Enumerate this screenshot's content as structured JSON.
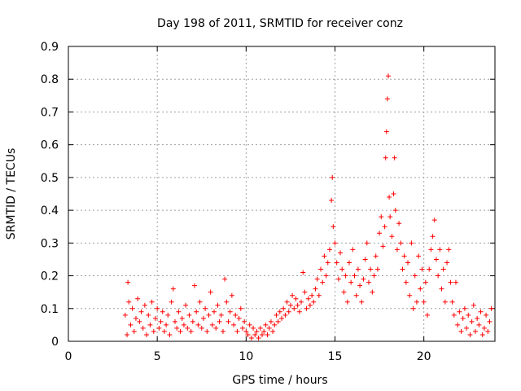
{
  "chart_data": {
    "type": "scatter",
    "title": "Day 198 of 2011, SRMTID for receiver conz",
    "xlabel": "GPS time / hours",
    "ylabel": "SRMTID / TECUs",
    "xlim": [
      0,
      24
    ],
    "ylim": [
      0,
      0.9
    ],
    "xticks": [
      0,
      5,
      10,
      15,
      20
    ],
    "yticks": [
      0,
      0.1,
      0.2,
      0.3,
      0.4,
      0.5,
      0.6,
      0.7,
      0.8,
      0.9
    ],
    "grid": true,
    "marker": "plus",
    "color": "#ff0000",
    "series": [
      {
        "name": "conz",
        "points": [
          [
            3.2,
            0.08
          ],
          [
            3.3,
            0.02
          ],
          [
            3.35,
            0.18
          ],
          [
            3.4,
            0.12
          ],
          [
            3.5,
            0.05
          ],
          [
            3.6,
            0.1
          ],
          [
            3.7,
            0.03
          ],
          [
            3.8,
            0.07
          ],
          [
            3.9,
            0.13
          ],
          [
            4.0,
            0.06
          ],
          [
            4.1,
            0.09
          ],
          [
            4.2,
            0.04
          ],
          [
            4.3,
            0.11
          ],
          [
            4.4,
            0.02
          ],
          [
            4.5,
            0.08
          ],
          [
            4.6,
            0.05
          ],
          [
            4.7,
            0.12
          ],
          [
            4.8,
            0.03
          ],
          [
            4.9,
            0.07
          ],
          [
            5.0,
            0.1
          ],
          [
            5.1,
            0.04
          ],
          [
            5.2,
            0.06
          ],
          [
            5.3,
            0.09
          ],
          [
            5.4,
            0.03
          ],
          [
            5.5,
            0.05
          ],
          [
            5.6,
            0.08
          ],
          [
            5.7,
            0.02
          ],
          [
            5.8,
            0.12
          ],
          [
            5.9,
            0.16
          ],
          [
            6.0,
            0.06
          ],
          [
            6.1,
            0.04
          ],
          [
            6.2,
            0.09
          ],
          [
            6.3,
            0.03
          ],
          [
            6.4,
            0.07
          ],
          [
            6.5,
            0.05
          ],
          [
            6.6,
            0.11
          ],
          [
            6.7,
            0.04
          ],
          [
            6.8,
            0.08
          ],
          [
            6.9,
            0.03
          ],
          [
            7.0,
            0.06
          ],
          [
            7.1,
            0.17
          ],
          [
            7.2,
            0.09
          ],
          [
            7.3,
            0.05
          ],
          [
            7.4,
            0.12
          ],
          [
            7.5,
            0.04
          ],
          [
            7.6,
            0.07
          ],
          [
            7.7,
            0.1
          ],
          [
            7.8,
            0.03
          ],
          [
            7.9,
            0.08
          ],
          [
            8.0,
            0.15
          ],
          [
            8.1,
            0.05
          ],
          [
            8.2,
            0.09
          ],
          [
            8.3,
            0.04
          ],
          [
            8.4,
            0.11
          ],
          [
            8.5,
            0.06
          ],
          [
            8.6,
            0.08
          ],
          [
            8.7,
            0.03
          ],
          [
            8.8,
            0.19
          ],
          [
            8.9,
            0.12
          ],
          [
            9.0,
            0.06
          ],
          [
            9.1,
            0.09
          ],
          [
            9.2,
            0.14
          ],
          [
            9.3,
            0.05
          ],
          [
            9.4,
            0.08
          ],
          [
            9.5,
            0.03
          ],
          [
            9.6,
            0.07
          ],
          [
            9.7,
            0.1
          ],
          [
            9.8,
            0.04
          ],
          [
            9.9,
            0.06
          ],
          [
            10.0,
            0.03
          ],
          [
            10.1,
            0.02
          ],
          [
            10.2,
            0.05
          ],
          [
            10.3,
            0.01
          ],
          [
            10.4,
            0.04
          ],
          [
            10.5,
            0.02
          ],
          [
            10.6,
            0.03
          ],
          [
            10.7,
            0.01
          ],
          [
            10.8,
            0.04
          ],
          [
            10.9,
            0.02
          ],
          [
            11.0,
            0.03
          ],
          [
            11.1,
            0.05
          ],
          [
            11.2,
            0.02
          ],
          [
            11.3,
            0.04
          ],
          [
            11.4,
            0.06
          ],
          [
            11.5,
            0.03
          ],
          [
            11.6,
            0.05
          ],
          [
            11.7,
            0.08
          ],
          [
            11.8,
            0.06
          ],
          [
            11.9,
            0.09
          ],
          [
            12.0,
            0.07
          ],
          [
            12.1,
            0.1
          ],
          [
            12.2,
            0.08
          ],
          [
            12.3,
            0.12
          ],
          [
            12.4,
            0.09
          ],
          [
            12.5,
            0.11
          ],
          [
            12.6,
            0.14
          ],
          [
            12.7,
            0.1
          ],
          [
            12.8,
            0.13
          ],
          [
            12.9,
            0.11
          ],
          [
            13.0,
            0.09
          ],
          [
            13.1,
            0.12
          ],
          [
            13.2,
            0.21
          ],
          [
            13.3,
            0.15
          ],
          [
            13.4,
            0.1
          ],
          [
            13.5,
            0.13
          ],
          [
            13.6,
            0.11
          ],
          [
            13.7,
            0.14
          ],
          [
            13.8,
            0.12
          ],
          [
            13.9,
            0.16
          ],
          [
            14.0,
            0.19
          ],
          [
            14.1,
            0.14
          ],
          [
            14.2,
            0.22
          ],
          [
            14.3,
            0.18
          ],
          [
            14.4,
            0.26
          ],
          [
            14.5,
            0.2
          ],
          [
            14.6,
            0.24
          ],
          [
            14.7,
            0.28
          ],
          [
            14.8,
            0.43
          ],
          [
            14.85,
            0.5
          ],
          [
            14.9,
            0.35
          ],
          [
            15.0,
            0.3
          ],
          [
            15.1,
            0.24
          ],
          [
            15.2,
            0.19
          ],
          [
            15.3,
            0.27
          ],
          [
            15.4,
            0.22
          ],
          [
            15.5,
            0.15
          ],
          [
            15.6,
            0.2
          ],
          [
            15.7,
            0.12
          ],
          [
            15.8,
            0.24
          ],
          [
            15.9,
            0.18
          ],
          [
            16.0,
            0.28
          ],
          [
            16.1,
            0.2
          ],
          [
            16.2,
            0.14
          ],
          [
            16.3,
            0.22
          ],
          [
            16.4,
            0.17
          ],
          [
            16.5,
            0.12
          ],
          [
            16.6,
            0.19
          ],
          [
            16.7,
            0.25
          ],
          [
            16.8,
            0.3
          ],
          [
            16.9,
            0.18
          ],
          [
            17.0,
            0.22
          ],
          [
            17.1,
            0.15
          ],
          [
            17.2,
            0.2
          ],
          [
            17.3,
            0.26
          ],
          [
            17.4,
            0.22
          ],
          [
            17.5,
            0.33
          ],
          [
            17.6,
            0.38
          ],
          [
            17.7,
            0.29
          ],
          [
            17.8,
            0.35
          ],
          [
            17.85,
            0.56
          ],
          [
            17.9,
            0.64
          ],
          [
            17.95,
            0.74
          ],
          [
            18.0,
            0.81
          ],
          [
            18.05,
            0.44
          ],
          [
            18.1,
            0.38
          ],
          [
            18.2,
            0.32
          ],
          [
            18.3,
            0.45
          ],
          [
            18.35,
            0.56
          ],
          [
            18.4,
            0.4
          ],
          [
            18.5,
            0.28
          ],
          [
            18.6,
            0.36
          ],
          [
            18.7,
            0.3
          ],
          [
            18.8,
            0.22
          ],
          [
            18.9,
            0.26
          ],
          [
            19.0,
            0.18
          ],
          [
            19.1,
            0.24
          ],
          [
            19.2,
            0.14
          ],
          [
            19.3,
            0.3
          ],
          [
            19.4,
            0.1
          ],
          [
            19.5,
            0.2
          ],
          [
            19.6,
            0.12
          ],
          [
            19.7,
            0.26
          ],
          [
            19.8,
            0.16
          ],
          [
            19.9,
            0.22
          ],
          [
            20.0,
            0.12
          ],
          [
            20.1,
            0.18
          ],
          [
            20.2,
            0.08
          ],
          [
            20.3,
            0.22
          ],
          [
            20.4,
            0.28
          ],
          [
            20.5,
            0.32
          ],
          [
            20.6,
            0.37
          ],
          [
            20.7,
            0.25
          ],
          [
            20.8,
            0.2
          ],
          [
            20.9,
            0.28
          ],
          [
            21.0,
            0.16
          ],
          [
            21.1,
            0.22
          ],
          [
            21.2,
            0.12
          ],
          [
            21.3,
            0.24
          ],
          [
            21.4,
            0.28
          ],
          [
            21.5,
            0.18
          ],
          [
            21.6,
            0.12
          ],
          [
            21.7,
            0.08
          ],
          [
            21.8,
            0.18
          ],
          [
            21.9,
            0.05
          ],
          [
            22.0,
            0.09
          ],
          [
            22.1,
            0.03
          ],
          [
            22.2,
            0.07
          ],
          [
            22.3,
            0.1
          ],
          [
            22.4,
            0.04
          ],
          [
            22.5,
            0.08
          ],
          [
            22.6,
            0.02
          ],
          [
            22.7,
            0.06
          ],
          [
            22.8,
            0.11
          ],
          [
            22.9,
            0.03
          ],
          [
            23.0,
            0.07
          ],
          [
            23.1,
            0.05
          ],
          [
            23.2,
            0.09
          ],
          [
            23.3,
            0.02
          ],
          [
            23.4,
            0.04
          ],
          [
            23.5,
            0.08
          ],
          [
            23.6,
            0.03
          ],
          [
            23.7,
            0.06
          ],
          [
            23.8,
            0.1
          ]
        ]
      }
    ]
  }
}
